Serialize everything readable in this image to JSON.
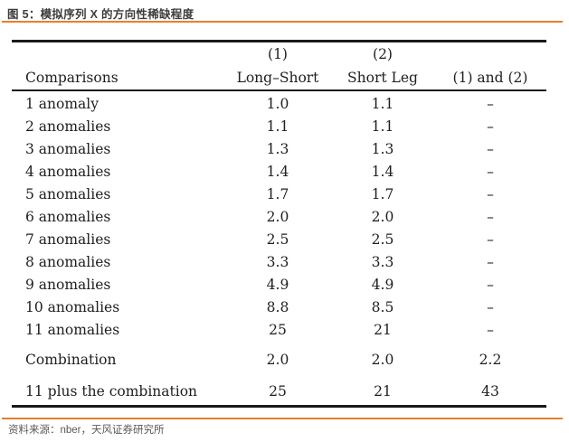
{
  "figure": {
    "title": "图 5：模拟序列 X 的方向性稀缺程度",
    "source": "资料来源：nber，天风证券研究所"
  },
  "colors": {
    "accent_orange": "#e87e2d",
    "title_text": "#3c3c3c",
    "source_text": "#595959",
    "table_text": "#1e1e1e",
    "table_rule": "#1a1a1a",
    "background": "#ffffff"
  },
  "chart_data": {
    "type": "table",
    "title": "模拟序列 X 的方向性稀缺程度",
    "group_headers": [
      "",
      "(1)",
      "(2)",
      ""
    ],
    "headers": [
      "Comparisons",
      "Long–Short",
      "Short Leg",
      "(1) and (2)"
    ],
    "rows": [
      {
        "cells": [
          "1 anomaly",
          "1.0",
          "1.1",
          "–"
        ],
        "gap": false
      },
      {
        "cells": [
          "2 anomalies",
          "1.1",
          "1.1",
          "–"
        ],
        "gap": false
      },
      {
        "cells": [
          "3 anomalies",
          "1.3",
          "1.3",
          "–"
        ],
        "gap": false
      },
      {
        "cells": [
          "4 anomalies",
          "1.4",
          "1.4",
          "–"
        ],
        "gap": false
      },
      {
        "cells": [
          "5 anomalies",
          "1.7",
          "1.7",
          "–"
        ],
        "gap": false
      },
      {
        "cells": [
          "6 anomalies",
          "2.0",
          "2.0",
          "–"
        ],
        "gap": false
      },
      {
        "cells": [
          "7 anomalies",
          "2.5",
          "2.5",
          "–"
        ],
        "gap": false
      },
      {
        "cells": [
          "8 anomalies",
          "3.3",
          "3.3",
          "–"
        ],
        "gap": false
      },
      {
        "cells": [
          "9 anomalies",
          "4.9",
          "4.9",
          "–"
        ],
        "gap": false
      },
      {
        "cells": [
          "10 anomalies",
          "8.8",
          "8.5",
          "–"
        ],
        "gap": false
      },
      {
        "cells": [
          "11 anomalies",
          "25",
          "21",
          "–"
        ],
        "gap": false
      },
      {
        "cells": [
          "Combination",
          "2.0",
          "2.0",
          "2.2"
        ],
        "gap": true
      },
      {
        "cells": [
          "11 plus the combination",
          "25",
          "21",
          "43"
        ],
        "gap": true
      }
    ]
  }
}
